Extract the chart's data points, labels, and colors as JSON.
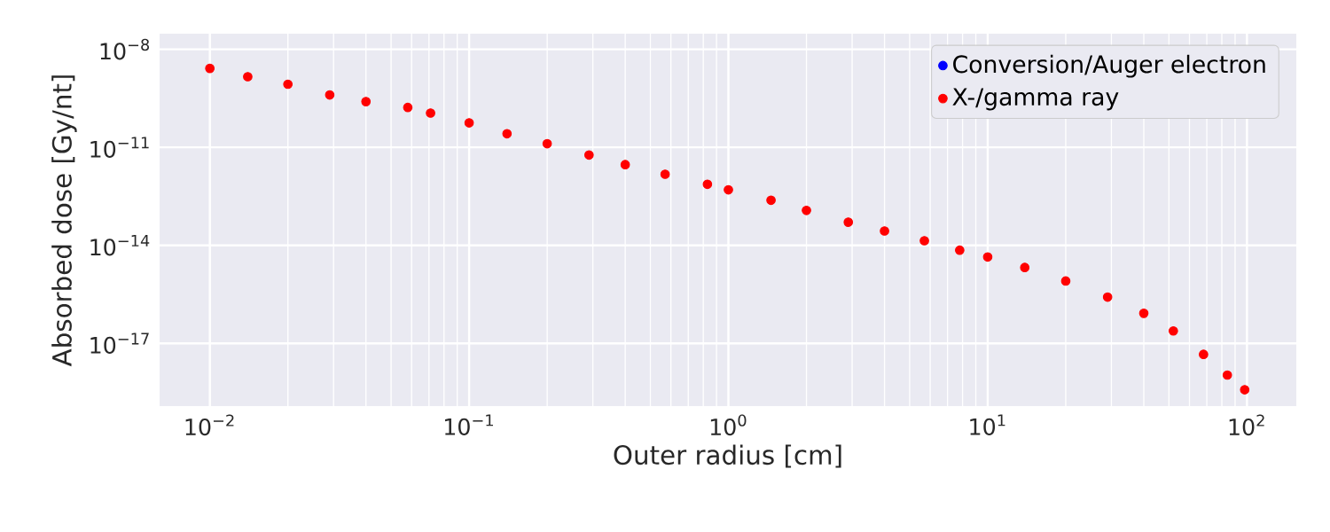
{
  "chart_data": {
    "type": "scatter",
    "xlabel": "Outer radius [cm]",
    "ylabel": "Absorbed dose [Gy/nt]",
    "x": [
      0.01,
      0.014,
      0.02,
      0.029,
      0.04,
      0.058,
      0.071,
      0.1,
      0.14,
      0.2,
      0.29,
      0.4,
      0.57,
      0.83,
      1,
      1.46,
      2,
      2.9,
      4,
      5.7,
      7.8,
      10,
      13.9,
      20,
      29,
      40,
      52,
      68,
      84,
      98
    ],
    "series": [
      {
        "name": "Conversion/Auger electron",
        "color": "#0000ff",
        "values": [
          null,
          null,
          null,
          null,
          null,
          null,
          null,
          null,
          null,
          null,
          null,
          null,
          null,
          null,
          null,
          null,
          null,
          null,
          null,
          null,
          null,
          null,
          null,
          null,
          null,
          null,
          null,
          null,
          null,
          null
        ]
      },
      {
        "name": "X-/gamma ray",
        "color": "#ff0000",
        "values": [
          2.6e-09,
          1.45e-09,
          8.5e-10,
          4e-10,
          2.5e-10,
          1.66e-10,
          1.12e-10,
          5.6e-11,
          2.6e-11,
          1.29e-11,
          5.8e-12,
          2.95e-12,
          1.5e-12,
          7.4e-13,
          5e-13,
          2.4e-13,
          1.17e-13,
          5.1e-14,
          2.75e-14,
          1.38e-14,
          7.1e-15,
          4.4e-15,
          2.1e-15,
          8.1e-16,
          2.6e-16,
          8.3e-17,
          2.4e-17,
          4.6e-18,
          1.07e-18,
          3.8e-19
        ]
      }
    ],
    "log": "xy",
    "marker": "circle",
    "grid": true,
    "legend": "top right",
    "xlim": [
      0.0064,
      155
    ],
    "ylim": [
      1.2e-19,
      3e-08
    ],
    "xticks": [
      {
        "value": 0.01,
        "label": "10$^{−2}$"
      },
      {
        "value": 0.1,
        "label": "10$^{−1}$"
      },
      {
        "value": 1,
        "label": "10$^{0}$"
      },
      {
        "value": 10,
        "label": "10$^{1}$"
      },
      {
        "value": 100,
        "label": "10$^{2}$"
      }
    ],
    "yticks": [
      {
        "value": 1e-08,
        "label": "10$^{−8}$"
      },
      {
        "value": 1e-11,
        "label": "10$^{−11}$"
      },
      {
        "value": 1e-14,
        "label": "10$^{−14}$"
      },
      {
        "value": 1e-17,
        "label": "10$^{−17}$"
      }
    ]
  }
}
